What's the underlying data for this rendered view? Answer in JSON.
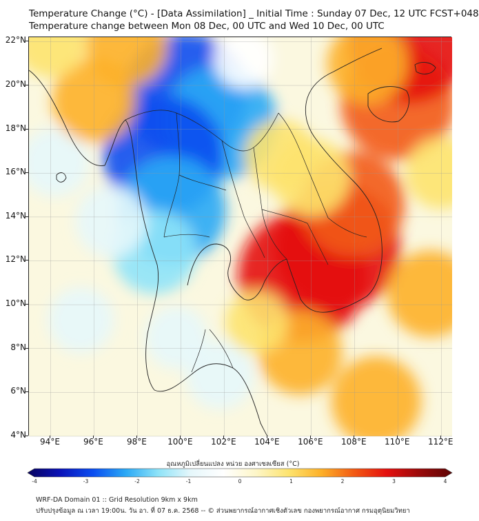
{
  "title_line1": "Temperature Change (°C) - [Data Assimilation] _ Initial Time : Sunday 07 Dec, 12 UTC FCST+048",
  "title_line2": "Temperature change between Mon 08 Dec, 00 UTC and Wed 10 Dec, 00 UTC",
  "axes": {
    "x_ticks": [
      "94°E",
      "96°E",
      "98°E",
      "100°E",
      "102°E",
      "104°E",
      "106°E",
      "108°E",
      "110°E",
      "112°E"
    ],
    "y_ticks": [
      "22°N",
      "20°N",
      "18°N",
      "16°N",
      "14°N",
      "12°N",
      "10°N",
      "8°N",
      "6°N",
      "4°N"
    ],
    "lon_range": [
      93,
      112.5
    ],
    "lat_range": [
      4,
      22.2
    ]
  },
  "colorbar": {
    "title": "อุณหภูมิเปลี่ยนแปลง หน่วย องศาเซลเซียส (°C)",
    "ticks": [
      "-4",
      "-3",
      "-2",
      "-1",
      "0",
      "1",
      "2",
      "3",
      "4"
    ],
    "range": [
      -4,
      4
    ],
    "colors": [
      "#08035e",
      "#0a12b8",
      "#0a4df0",
      "#2aa8f5",
      "#8ee3f8",
      "#e6f7fb",
      "#ffffff",
      "#fdf6c8",
      "#fde36e",
      "#fdb028",
      "#f25a14",
      "#e4100f",
      "#9a0a0a",
      "#5e0505"
    ]
  },
  "field": {
    "features": [
      {
        "lon": 100.2,
        "lat": 19.6,
        "value": -2.7
      },
      {
        "lon": 101.8,
        "lat": 18.3,
        "value": -2.4
      },
      {
        "lon": 99.2,
        "lat": 16.8,
        "value": -2.6
      },
      {
        "lon": 99.6,
        "lat": 14.3,
        "value": -2.2
      },
      {
        "lon": 98.8,
        "lat": 12.4,
        "value": -1.4
      },
      {
        "lon": 96.8,
        "lat": 13.8,
        "value": -1.0
      },
      {
        "lon": 95.4,
        "lat": 9.3,
        "value": -0.8
      },
      {
        "lon": 94.2,
        "lat": 16.5,
        "value": -0.9
      },
      {
        "lon": 101.8,
        "lat": 6.8,
        "value": -0.9
      },
      {
        "lon": 99.8,
        "lat": 8.5,
        "value": -0.7
      },
      {
        "lon": 102.9,
        "lat": 21.2,
        "value": -0.6
      },
      {
        "lon": 96.0,
        "lat": 19.3,
        "value": 1.4
      },
      {
        "lon": 107.2,
        "lat": 12.6,
        "value": 2.8
      },
      {
        "lon": 105.6,
        "lat": 11.3,
        "value": 2.9
      },
      {
        "lon": 107.9,
        "lat": 14.6,
        "value": 2.1
      },
      {
        "lon": 106.0,
        "lat": 15.8,
        "value": 1.2
      },
      {
        "lon": 110.0,
        "lat": 19.2,
        "value": 2.4
      },
      {
        "lon": 110.5,
        "lat": 22.0,
        "value": 2.7
      },
      {
        "lon": 108.6,
        "lat": 21.0,
        "value": 1.3
      },
      {
        "lon": 104.6,
        "lat": 16.8,
        "value": 1.0
      },
      {
        "lon": 105.5,
        "lat": 7.8,
        "value": 1.4
      },
      {
        "lon": 109.0,
        "lat": 5.6,
        "value": 1.6
      },
      {
        "lon": 111.5,
        "lat": 10.5,
        "value": 1.5
      },
      {
        "lon": 97.5,
        "lat": 21.8,
        "value": 1.3
      },
      {
        "lon": 94.0,
        "lat": 22.0,
        "value": 1.0
      },
      {
        "lon": 103.5,
        "lat": 9.2,
        "value": 0.7
      },
      {
        "lon": 112.0,
        "lat": 16.0,
        "value": 1.0
      }
    ]
  },
  "footer_line1": "WRF-DA Domain 01 :: Grid Resolution 9km x 9km",
  "footer_line2": "ปรับปรุงข้อมูล ณ เวลา 19:00น. วัน อา. ที่ 07 ธ.ค. 2568 -- © ส่วนพยากรณ์อากาศเชิงตัวเลข กองพยากรณ์อากาศ กรมอุตุนิยมวิทยา"
}
